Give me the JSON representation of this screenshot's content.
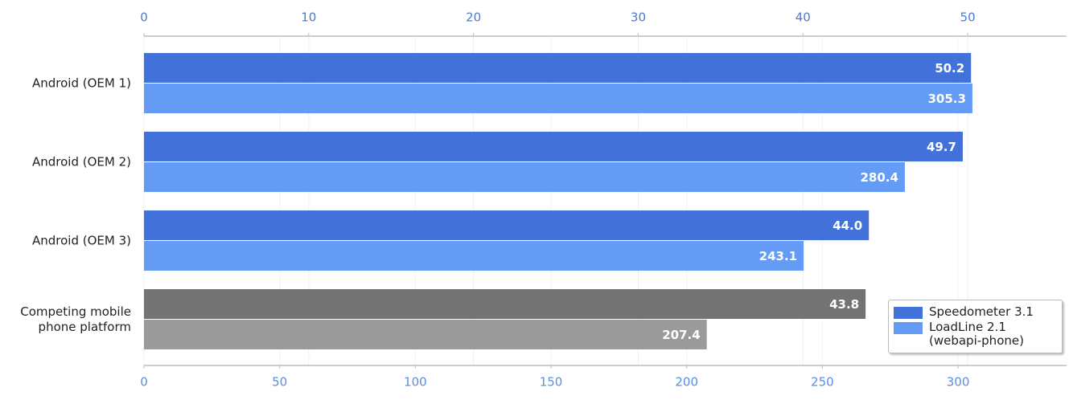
{
  "chart_data": {
    "type": "hbar",
    "categories": [
      "Android (OEM 1)",
      "Android (OEM 2)",
      "Android (OEM 3)",
      "Competing mobile phone platform"
    ],
    "series": [
      {
        "name": "Speedometer 3.1",
        "color": "#4271d9",
        "colors": [
          "#4271d9",
          "#4271d9",
          "#4271d9",
          "#737373"
        ],
        "axis": "x2",
        "values": [
          50.2,
          49.7,
          44.0,
          43.8
        ],
        "value_labels": [
          "50.2",
          "49.7",
          "44.0",
          "43.8"
        ]
      },
      {
        "name": "LoadLine 2.1 (webapi-phone)",
        "color": "#649cf5",
        "colors": [
          "#649cf5",
          "#649cf5",
          "#649cf5",
          "#9a9a9a"
        ],
        "values": [
          305.3,
          280.4,
          243.1,
          207.4
        ],
        "value_labels": [
          "305.3",
          "280.4",
          "243.1",
          "207.4"
        ]
      }
    ],
    "xlim": [
      0,
      340
    ],
    "xticks": [
      0,
      50,
      100,
      150,
      200,
      250,
      300
    ],
    "x2lim": [
      0,
      56
    ],
    "x2ticks": [
      0,
      10,
      20,
      30,
      40,
      50
    ],
    "grid": true
  }
}
